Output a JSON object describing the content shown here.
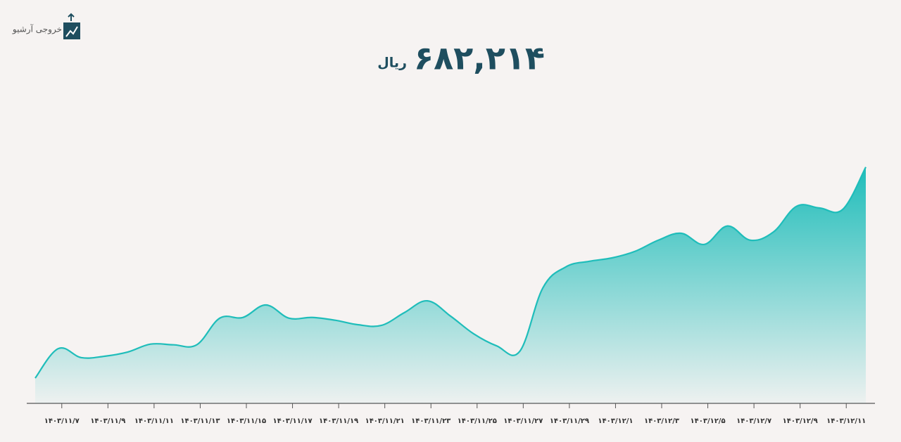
{
  "header": {
    "logo_text": "خروجی آرشیو",
    "total": "۶۸۲,۲۱۴",
    "currency": "ریال"
  },
  "chart_data": {
    "type": "area",
    "categories": [
      null,
      "۱۴۰۳/۱۱/۷",
      null,
      "۱۴۰۳/۱۱/۹",
      null,
      "۱۴۰۳/۱۱/۱۱",
      null,
      "۱۴۰۳/۱۱/۱۳",
      null,
      "۱۴۰۳/۱۱/۱۵",
      null,
      "۱۴۰۳/۱۱/۱۷",
      null,
      "۱۴۰۳/۱۱/۱۹",
      null,
      "۱۴۰۳/۱۱/۲۱",
      null,
      "۱۴۰۳/۱۱/۲۳",
      null,
      "۱۴۰۳/۱۱/۲۵",
      null,
      "۱۴۰۳/۱۱/۲۷",
      null,
      "۱۴۰۳/۱۱/۲۹",
      null,
      "۱۴۰۳/۱۲/۱",
      null,
      "۱۴۰۳/۱۲/۳",
      null,
      "۱۴۰۳/۱۲/۵",
      null,
      "۱۴۰۳/۱۲/۷",
      null,
      "۱۴۰۳/۱۲/۹",
      null,
      "۱۴۰۳/۱۲/۱۱",
      null
    ],
    "values": [
      73000,
      158000,
      132000,
      136000,
      148000,
      171000,
      169000,
      169000,
      246000,
      248000,
      284000,
      246000,
      248000,
      240000,
      227000,
      225000,
      262000,
      296000,
      252000,
      201000,
      166000,
      150000,
      333000,
      394000,
      410000,
      420000,
      439000,
      471000,
      491000,
      459000,
      512000,
      471000,
      495000,
      569000,
      564000,
      560000,
      682214
    ],
    "color": "#1fbdba",
    "ylim": [
      0,
      700000
    ]
  }
}
